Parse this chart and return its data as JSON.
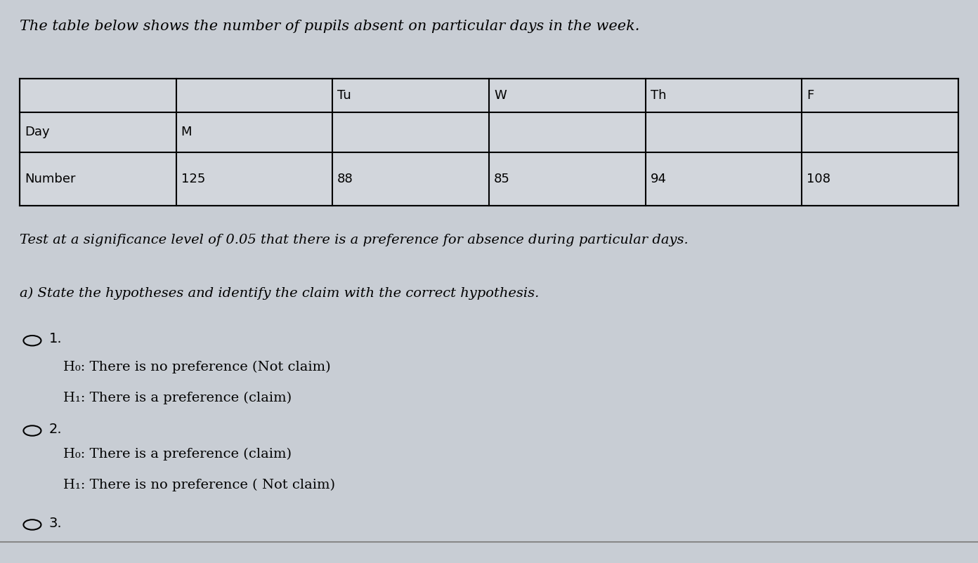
{
  "title": "The table below shows the number of pupils absent on particular days in the week.",
  "table": {
    "days": [
      "M",
      "Tu",
      "W",
      "Th",
      "F"
    ],
    "numbers": [
      "125",
      "88",
      "85",
      "94",
      "108"
    ],
    "row_labels": [
      "Day",
      "Number"
    ]
  },
  "test_text": "Test at a significance level of 0.05 that there is a preference for absence during particular days.",
  "part_a": "a) State the hypotheses and identify the claim with the correct hypothesis.",
  "option1_label": "1.",
  "option1_h0": "H₀: There is no preference (Not claim)",
  "option1_h1": "H₁: There is a preference (claim)",
  "option2_label": "2.",
  "option2_h0": "H₀: There is a preference (claim)",
  "option2_h1": "H₁: There is no preference ( Not claim)",
  "option3_label": "3.",
  "background_color": "#c8cdd4",
  "table_bg": "#d2d6dc",
  "text_color": "#000000",
  "title_fontsize": 15,
  "body_fontsize": 14,
  "table_fontsize": 13
}
